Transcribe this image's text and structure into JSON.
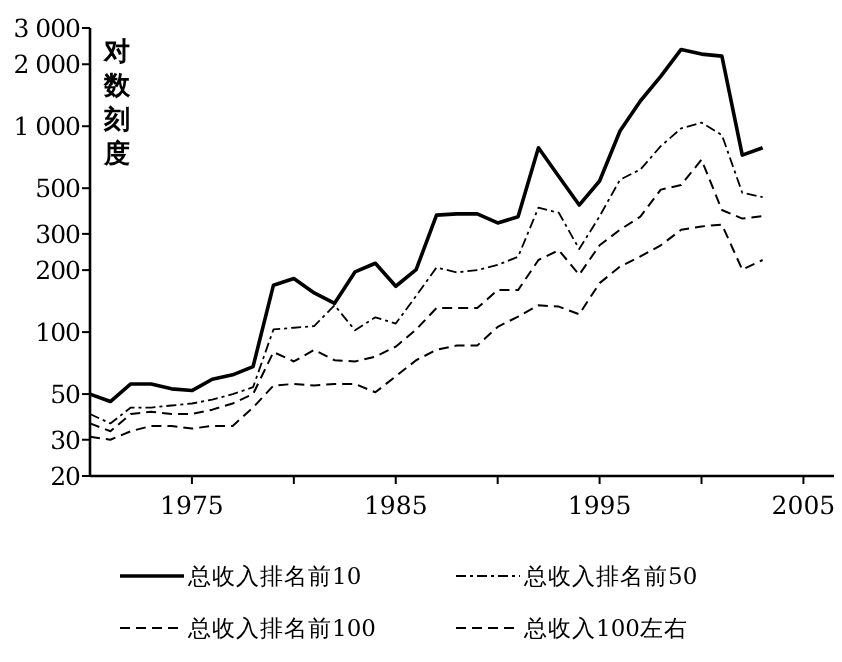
{
  "chart_data": {
    "type": "line",
    "ylabel": "对数刻度",
    "log": "y",
    "legend": "bottom",
    "x": [
      1970,
      1971,
      1972,
      1973,
      1974,
      1975,
      1976,
      1977,
      1978,
      1979,
      1980,
      1981,
      1982,
      1983,
      1984,
      1985,
      1986,
      1987,
      1988,
      1989,
      1990,
      1991,
      1992,
      1993,
      1994,
      1995,
      1996,
      1997,
      1998,
      1999,
      2000,
      2001,
      2002,
      2003
    ],
    "xlim": [
      1970,
      2006.5
    ],
    "ylim": [
      20,
      3000
    ],
    "xticks": [
      1975,
      {
        "value": 1980,
        "label": null
      },
      1985,
      {
        "value": 1990,
        "label": null
      },
      1995,
      {
        "value": 2000,
        "label": null
      },
      2005
    ],
    "yticks": [
      20,
      30,
      50,
      100,
      200,
      300,
      500,
      {
        "value": 1000,
        "label": "1 000"
      },
      {
        "value": 2000,
        "label": "2 000"
      },
      {
        "value": 3000,
        "label": "3 000"
      }
    ],
    "series": [
      {
        "name": "总收入排名前10",
        "color": "#000000",
        "line_style": "solid",
        "values": [
          50,
          46,
          56,
          56,
          53,
          52,
          59,
          62,
          68,
          169,
          182,
          155,
          138,
          196,
          216,
          167,
          201,
          370,
          375,
          375,
          339,
          363,
          786,
          570,
          414,
          542,
          948,
          1326,
          1748,
          2360,
          2240,
          2190,
          724,
          786
        ]
      },
      {
        "name": "总收入排名前50",
        "color": "#000000",
        "line_style": "dotted",
        "values": [
          40,
          36,
          43,
          43,
          44,
          45,
          47,
          50,
          54,
          103,
          105,
          107,
          135,
          102,
          118,
          110,
          150,
          206,
          195,
          200,
          212,
          232,
          402,
          380,
          253,
          365,
          550,
          616,
          800,
          976,
          1042,
          906,
          475,
          452
        ]
      },
      {
        "name": "总收入排名前100",
        "color": "#000000",
        "line_style": "dashed",
        "values": [
          36,
          33,
          40,
          41,
          40,
          40,
          42,
          45,
          50,
          80,
          72,
          82,
          73,
          72,
          76,
          85,
          103,
          131,
          131,
          131,
          160,
          160,
          224,
          250,
          190,
          264,
          314,
          364,
          492,
          518,
          688,
          392,
          356,
          366
        ]
      },
      {
        "name": "总收入100左右",
        "color": "#000000",
        "line_style": "dashed",
        "values": [
          31,
          30,
          33,
          35,
          35,
          34,
          35,
          35,
          43,
          55,
          56,
          55,
          56,
          56,
          51,
          61,
          73,
          82,
          86,
          86,
          106,
          119,
          135,
          133,
          122,
          173,
          208,
          233,
          264,
          314,
          326,
          333,
          201,
          224
        ]
      }
    ]
  }
}
